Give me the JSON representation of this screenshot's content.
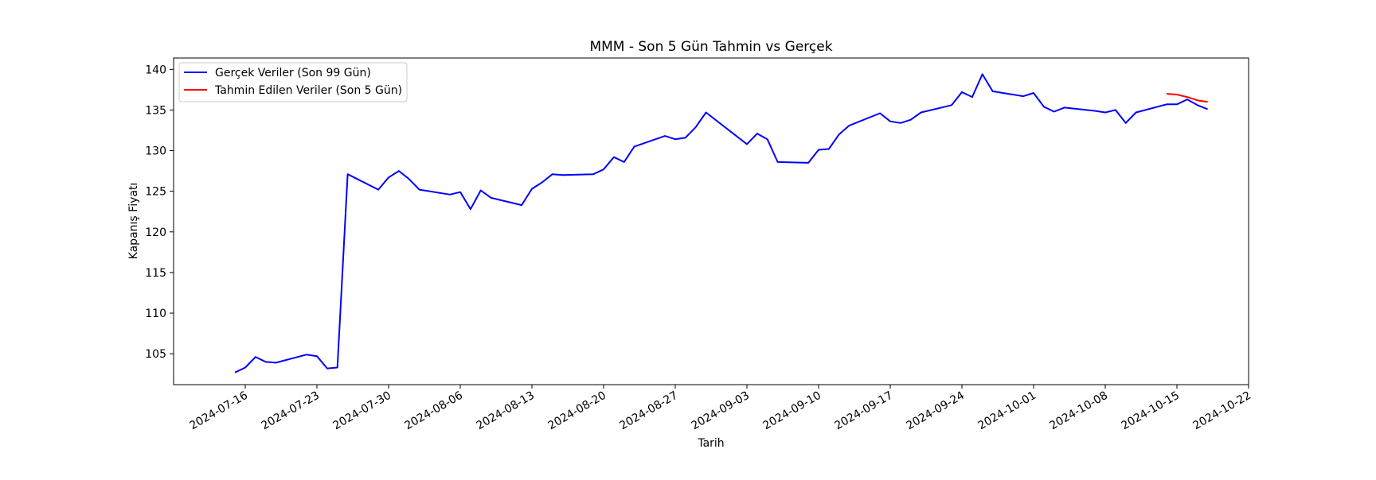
{
  "chart_data": {
    "type": "line",
    "title": "MMM - Son 5 Gün Tahmin vs Gerçek",
    "xlabel": "Tarih",
    "ylabel": "Kapanış Fiyatı",
    "xlim": [
      "2024-07-09",
      "2024-10-22"
    ],
    "ylim": [
      101.2,
      141.4
    ],
    "x_ticks": [
      "2024-07-16",
      "2024-07-23",
      "2024-07-30",
      "2024-08-06",
      "2024-08-13",
      "2024-08-20",
      "2024-08-27",
      "2024-09-03",
      "2024-09-10",
      "2024-09-17",
      "2024-09-24",
      "2024-10-01",
      "2024-10-08",
      "2024-10-15",
      "2024-10-22"
    ],
    "y_ticks": [
      105,
      110,
      115,
      120,
      125,
      130,
      135,
      140
    ],
    "grid": false,
    "legend_position": "upper-left",
    "series": [
      {
        "name": "Gerçek Veriler (Son 99 Gün)",
        "color": "#0000ff",
        "points": [
          [
            "2024-07-15",
            102.7
          ],
          [
            "2024-07-16",
            103.3
          ],
          [
            "2024-07-17",
            104.6
          ],
          [
            "2024-07-18",
            104.0
          ],
          [
            "2024-07-19",
            103.9
          ],
          [
            "2024-07-22",
            104.9
          ],
          [
            "2024-07-23",
            104.7
          ],
          [
            "2024-07-24",
            103.2
          ],
          [
            "2024-07-25",
            103.3
          ],
          [
            "2024-07-26",
            127.1
          ],
          [
            "2024-07-29",
            125.2
          ],
          [
            "2024-07-30",
            126.7
          ],
          [
            "2024-07-31",
            127.5
          ],
          [
            "2024-08-01",
            126.5
          ],
          [
            "2024-08-02",
            125.2
          ],
          [
            "2024-08-05",
            124.6
          ],
          [
            "2024-08-06",
            124.9
          ],
          [
            "2024-08-07",
            122.8
          ],
          [
            "2024-08-08",
            125.1
          ],
          [
            "2024-08-09",
            124.2
          ],
          [
            "2024-08-12",
            123.3
          ],
          [
            "2024-08-13",
            125.3
          ],
          [
            "2024-08-14",
            126.1
          ],
          [
            "2024-08-15",
            127.1
          ],
          [
            "2024-08-16",
            127.0
          ],
          [
            "2024-08-19",
            127.1
          ],
          [
            "2024-08-20",
            127.7
          ],
          [
            "2024-08-21",
            129.2
          ],
          [
            "2024-08-22",
            128.6
          ],
          [
            "2024-08-23",
            130.5
          ],
          [
            "2024-08-26",
            131.8
          ],
          [
            "2024-08-27",
            131.4
          ],
          [
            "2024-08-28",
            131.6
          ],
          [
            "2024-08-29",
            132.9
          ],
          [
            "2024-08-30",
            134.7
          ],
          [
            "2024-09-03",
            130.8
          ],
          [
            "2024-09-04",
            132.1
          ],
          [
            "2024-09-05",
            131.4
          ],
          [
            "2024-09-06",
            128.6
          ],
          [
            "2024-09-09",
            128.5
          ],
          [
            "2024-09-10",
            130.1
          ],
          [
            "2024-09-11",
            130.2
          ],
          [
            "2024-09-12",
            132.0
          ],
          [
            "2024-09-13",
            133.1
          ],
          [
            "2024-09-16",
            134.6
          ],
          [
            "2024-09-17",
            133.6
          ],
          [
            "2024-09-18",
            133.4
          ],
          [
            "2024-09-19",
            133.8
          ],
          [
            "2024-09-20",
            134.7
          ],
          [
            "2024-09-23",
            135.6
          ],
          [
            "2024-09-24",
            137.2
          ],
          [
            "2024-09-25",
            136.6
          ],
          [
            "2024-09-26",
            139.4
          ],
          [
            "2024-09-27",
            137.3
          ],
          [
            "2024-09-30",
            136.7
          ],
          [
            "2024-10-01",
            137.1
          ],
          [
            "2024-10-02",
            135.4
          ],
          [
            "2024-10-03",
            134.8
          ],
          [
            "2024-10-04",
            135.3
          ],
          [
            "2024-10-07",
            134.9
          ],
          [
            "2024-10-08",
            134.7
          ],
          [
            "2024-10-09",
            135.0
          ],
          [
            "2024-10-10",
            133.4
          ],
          [
            "2024-10-11",
            134.7
          ],
          [
            "2024-10-14",
            135.7
          ],
          [
            "2024-10-15",
            135.7
          ],
          [
            "2024-10-16",
            136.3
          ],
          [
            "2024-10-17",
            135.6
          ],
          [
            "2024-10-18",
            135.1
          ]
        ]
      },
      {
        "name": "Tahmin Edilen Veriler (Son 5 Gün)",
        "color": "#ff0000",
        "points": [
          [
            "2024-10-14",
            137.0
          ],
          [
            "2024-10-15",
            136.9
          ],
          [
            "2024-10-16",
            136.6
          ],
          [
            "2024-10-17",
            136.2
          ],
          [
            "2024-10-18",
            136.0
          ]
        ]
      }
    ]
  }
}
